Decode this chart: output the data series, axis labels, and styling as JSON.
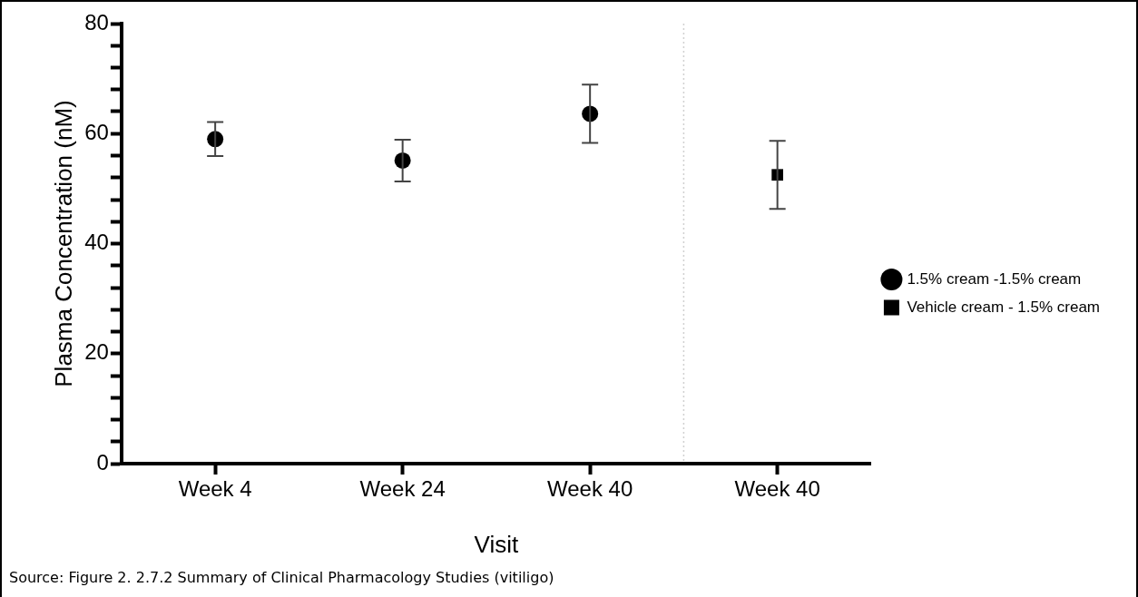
{
  "chart_data": {
    "type": "scatter",
    "categories": [
      "Week 4",
      "Week 24",
      "Week 40",
      "Week 40"
    ],
    "series": [
      {
        "name": "1.5% cream -1.5% cream",
        "color": "#000000",
        "marker": "circle",
        "values": [
          59,
          55.1,
          63.6,
          null
        ],
        "errors": [
          3.1,
          3.8,
          5.3,
          null
        ]
      },
      {
        "name": "Vehicle cream - 1.5% cream",
        "color": "#000000",
        "marker": "square",
        "values": [
          null,
          null,
          null,
          52.5
        ],
        "errors": [
          null,
          null,
          null,
          6.2
        ]
      }
    ],
    "xlabel": "Visit",
    "ylabel": "Plasma Concentration (nM)",
    "ylim": [
      0,
      80
    ],
    "yticks": [
      0,
      {
        "value": 4,
        "label": null
      },
      {
        "value": 8,
        "label": null
      },
      {
        "value": 12,
        "label": null
      },
      {
        "value": 16,
        "label": null
      },
      20,
      {
        "value": 24,
        "label": null
      },
      {
        "value": 28,
        "label": null
      },
      {
        "value": 32,
        "label": null
      },
      {
        "value": 36,
        "label": null
      },
      40,
      {
        "value": 44,
        "label": null
      },
      {
        "value": 48,
        "label": null
      },
      {
        "value": 52,
        "label": null
      },
      {
        "value": 56,
        "label": null
      },
      60,
      {
        "value": 64,
        "label": null
      },
      {
        "value": 68,
        "label": null
      },
      {
        "value": 72,
        "label": null
      },
      {
        "value": 76,
        "label": null
      },
      80
    ],
    "grid": false,
    "legend": "right",
    "annotations": [
      "Source: Figure 2. 2.7.2 Summary of Clinical Pharmacology Studies (vitiligo)"
    ]
  }
}
